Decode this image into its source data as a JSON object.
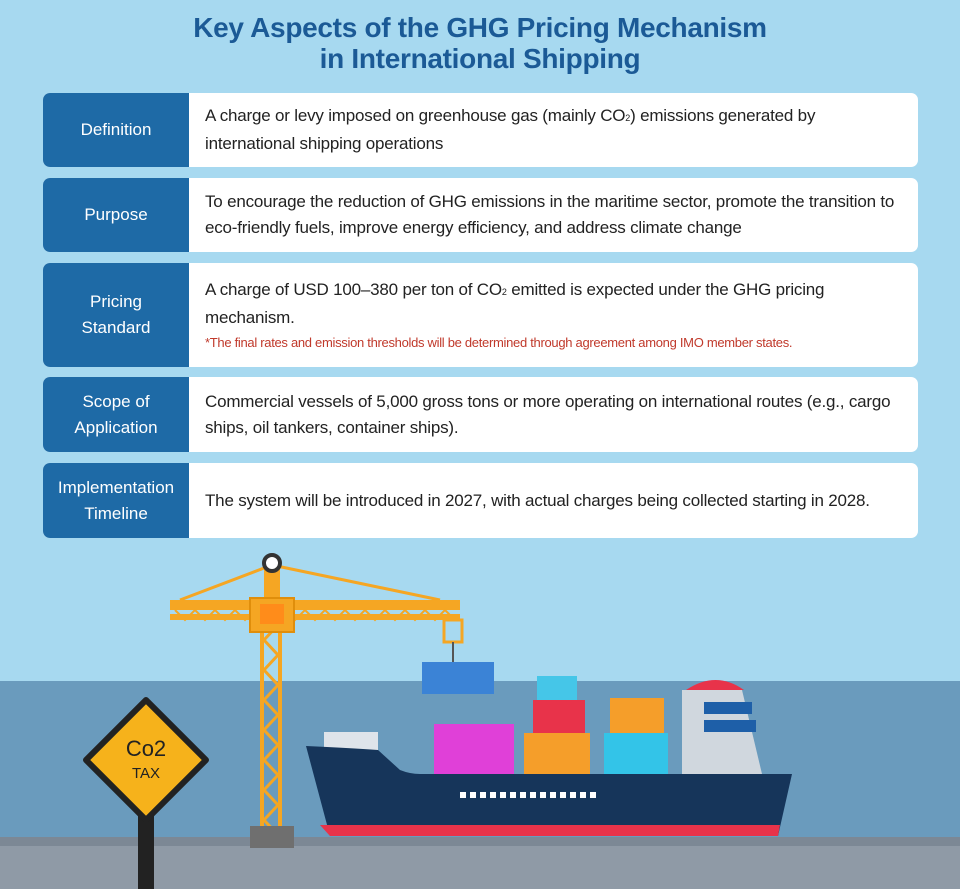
{
  "title": {
    "line1": "Key Aspects of the GHG Pricing Mechanism",
    "line2": "in International Shipping"
  },
  "rows": [
    {
      "label": "Definition",
      "desc_before": "A charge or levy imposed on greenhouse gas (mainly CO",
      "desc_sub": "2",
      "desc_after": ") emissions generated by international shipping operations"
    },
    {
      "label": "Purpose",
      "desc": "To encourage the reduction of GHG emissions in the maritime sector, promote the transition to eco-friendly fuels, improve energy efficiency, and address climate change"
    },
    {
      "label_line1": "Pricing",
      "label_line2": "Standard",
      "desc_before": "A charge of USD 100–380 per ton of CO",
      "desc_sub": "2",
      "desc_after": " emitted is expected under the GHG pricing mechanism.",
      "note": "*The final rates and emission thresholds will be determined through agreement among IMO member states."
    },
    {
      "label_line1": "Scope of",
      "label_line2": "Application",
      "desc": "Commercial vessels of 5,000 gross tons or more operating on international routes (e.g., cargo ships, oil tankers, container ships)."
    },
    {
      "label_line1": "Implementation",
      "label_line2": "Timeline",
      "desc": "The system will be introduced in 2027, with actual charges being collected starting in 2028."
    }
  ],
  "sign": {
    "line1": "Co2",
    "line2": "TAX"
  },
  "colors": {
    "sky": "#a7d9f0",
    "title": "#1b5a96",
    "label_bg": "#1e6aa6",
    "note": "#c0392b",
    "sea": "#6a9bbd",
    "crane": "#f5a623",
    "hull": "#16355a",
    "sign": "#f6b21b"
  }
}
